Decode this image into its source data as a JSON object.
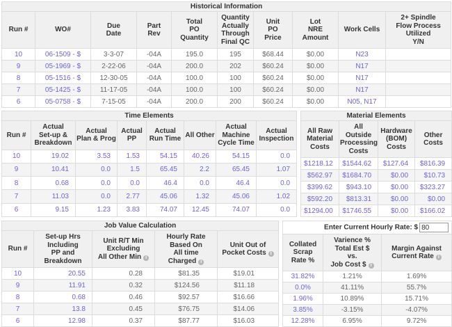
{
  "colors": {
    "link": "#6c63e6",
    "header_bg": "#f0f0f0",
    "row_stripe": "#f4f4f4",
    "border": "#dcdcdc",
    "text": "#666666",
    "header_text": "#333333"
  },
  "historical": {
    "title": "Historical Information",
    "headers": [
      {
        "label": "Run #"
      },
      {
        "label": "WO#"
      },
      {
        "label": "Due\nDate"
      },
      {
        "label": "Part\nRev"
      },
      {
        "label": "Total\nPO\nQuantity"
      },
      {
        "label": "Quantity\nActually\nThrough\nFinal QC"
      },
      {
        "label": "Unit\nPO\nPrice"
      },
      {
        "label": "Lot\nNRE\nAmount"
      },
      {
        "label": "Work Cells"
      },
      {
        "label": "2+ Spindle\nFlow Process\nUtilized\nY/N"
      }
    ],
    "rows": [
      {
        "run": "10",
        "wo": "06-1509 - $",
        "due": "3-3-07",
        "rev": "-04A",
        "po_qty": "195.0",
        "qty_qc": "195",
        "price": "$68.44",
        "nre": "$0.00",
        "cells": "N23",
        "spindle": ""
      },
      {
        "run": "9",
        "wo": "05-1969 - $",
        "due": "2-22-06",
        "rev": "-04A",
        "po_qty": "200.0",
        "qty_qc": "202",
        "price": "$60.24",
        "nre": "$0.00",
        "cells": "N17",
        "spindle": ""
      },
      {
        "run": "8",
        "wo": "05-1516 - $",
        "due": "12-30-05",
        "rev": "-04A",
        "po_qty": "100.0",
        "qty_qc": "100",
        "price": "$60.24",
        "nre": "$0.00",
        "cells": "N17",
        "spindle": ""
      },
      {
        "run": "7",
        "wo": "05-1425 - $",
        "due": "11-17-05",
        "rev": "-04A",
        "po_qty": "100.0",
        "qty_qc": "100",
        "price": "$60.24",
        "nre": "$0.00",
        "cells": "N17",
        "spindle": ""
      },
      {
        "run": "6",
        "wo": "05-0758 - $",
        "due": "7-15-05",
        "rev": "-04A",
        "po_qty": "200.0",
        "qty_qc": "200",
        "price": "$60.24",
        "nre": "$0.00",
        "cells": "N05, N17",
        "spindle": ""
      }
    ]
  },
  "time_elements": {
    "title": "Time Elements",
    "headers": [
      {
        "label": "Run #"
      },
      {
        "label": "Actual\nSet-up &\nBreakdown"
      },
      {
        "label": "Actual\nPlan & Prog"
      },
      {
        "label": "Actual\nPP"
      },
      {
        "label": "Actual\nRun Time"
      },
      {
        "label": "All Other"
      },
      {
        "label": "Actual\nMachine\nCycle Time"
      },
      {
        "label": "Actual\nInspection"
      }
    ],
    "rows": [
      {
        "run": "10",
        "setup": "19.02",
        "plan": "3.53",
        "pp": "1.53",
        "runtime": "54.15",
        "other": "40.26",
        "machine": "54.15",
        "insp": "0.0"
      },
      {
        "run": "9",
        "setup": "10.41",
        "plan": "0.0",
        "pp": "1.5",
        "runtime": "65.45",
        "other": "2.2",
        "machine": "65.45",
        "insp": "1.07"
      },
      {
        "run": "8",
        "setup": "0.68",
        "plan": "0.0",
        "pp": "0.0",
        "runtime": "46.4",
        "other": "0.0",
        "machine": "46.4",
        "insp": "0.0"
      },
      {
        "run": "7",
        "setup": "11.03",
        "plan": "0.0",
        "pp": "2.77",
        "runtime": "45.06",
        "other": "1.32",
        "machine": "45.06",
        "insp": "1.02"
      },
      {
        "run": "6",
        "setup": "9.15",
        "plan": "1.23",
        "pp": "3.83",
        "runtime": "74.07",
        "other": "12.45",
        "machine": "74.07",
        "insp": "0.0"
      }
    ]
  },
  "material_elements": {
    "title": "Material Elements",
    "headers": [
      {
        "label": "All Raw\nMaterial\nCosts"
      },
      {
        "label": "All\nOutside\nProcessing\nCosts"
      },
      {
        "label": "Hardware\n(BOM)\nCosts"
      },
      {
        "label": "Other\nCosts"
      }
    ],
    "rows": [
      {
        "raw": "$1218.12",
        "outside": "$1544.62",
        "hardware": "$127.64",
        "other": "$816.39"
      },
      {
        "raw": "$562.97",
        "outside": "$1684.70",
        "hardware": "$0.00",
        "other": "$10.73"
      },
      {
        "raw": "$399.62",
        "outside": "$943.10",
        "hardware": "$0.00",
        "other": "$323.27"
      },
      {
        "raw": "$592.20",
        "outside": "$813.31",
        "hardware": "$0.00",
        "other": "$0.00"
      },
      {
        "raw": "$1294.00",
        "outside": "$1746.55",
        "hardware": "$0.00",
        "other": "$166.02"
      }
    ]
  },
  "job_value": {
    "title": "Job Value Calculation",
    "headers": [
      {
        "label": "Run #"
      },
      {
        "label": "Set-up Hrs\nIncluding\nPP and\nBreakdown"
      },
      {
        "label": "Unit R/T Min\nExcluding\nAll Other Min",
        "info": true
      },
      {
        "label": "Hourly Rate\nBased On\nAll time\nCharged",
        "info": true
      },
      {
        "label": "Unit Out of\nPocket Costs",
        "info": true
      }
    ],
    "rows": [
      {
        "run": "10",
        "setup": "20.55",
        "unit_rt": "0.28",
        "hourly": "$81.35",
        "pocket": "$19.01"
      },
      {
        "run": "9",
        "setup": "11.91",
        "unit_rt": "0.32",
        "hourly": "$124.56",
        "pocket": "$11.18"
      },
      {
        "run": "8",
        "setup": "0.68",
        "unit_rt": "0.46",
        "hourly": "$92.57",
        "pocket": "$16.66"
      },
      {
        "run": "7",
        "setup": "13.8",
        "unit_rt": "0.45",
        "hourly": "$76.75",
        "pocket": "$14.06"
      },
      {
        "run": "6",
        "setup": "12.98",
        "unit_rt": "0.37",
        "hourly": "$87.77",
        "pocket": "$16.03"
      }
    ]
  },
  "rate_panel": {
    "label": "Enter Current Hourly Rate: $",
    "value": "80",
    "headers": [
      {
        "label": "Collated\nScrap\nRate %"
      },
      {
        "label": "Varience %\nTotal Est $\nvs.\nJob Cost $",
        "info": true
      },
      {
        "label": "Margin Against\nCurrent Rate",
        "info": true
      }
    ],
    "rows": [
      {
        "scrap": "31.82%",
        "varience": "1.21%",
        "margin": "1.69%"
      },
      {
        "scrap": "0.0%",
        "varience": "41.11%",
        "margin": "55.7%"
      },
      {
        "scrap": "1.96%",
        "varience": "10.89%",
        "margin": "15.71%"
      },
      {
        "scrap": "3.85%",
        "varience": "-3.15%",
        "margin": "-4.07%"
      },
      {
        "scrap": "12.28%",
        "varience": "6.95%",
        "margin": "9.72%"
      }
    ]
  }
}
